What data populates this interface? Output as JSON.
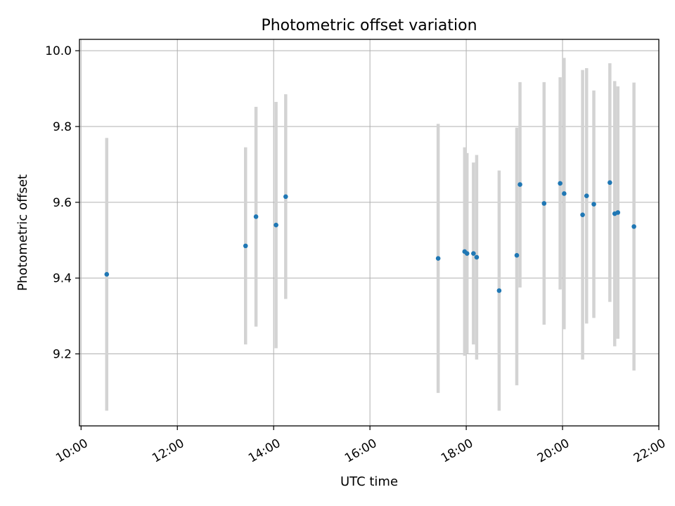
{
  "chart_data": {
    "type": "scatter",
    "title": "Photometric offset variation",
    "xlabel": "UTC time",
    "ylabel": "Photometric offset",
    "x_tick_labels": [
      "10:00",
      "12:00",
      "14:00",
      "16:00",
      "18:00",
      "20:00",
      "22:00"
    ],
    "y_tick_labels": [
      "9.2",
      "9.4",
      "9.6",
      "9.8",
      "10.0"
    ],
    "xlim": [
      "09:58",
      "22:00"
    ],
    "ylim": [
      9.01,
      10.03
    ],
    "grid": true,
    "point_color": "#1f77b4",
    "errorbar_color": "#d3d3d3",
    "points": [
      {
        "x": "10:32",
        "y": 9.41,
        "ymin": 9.05,
        "ymax": 9.77
      },
      {
        "x": "13:25",
        "y": 9.485,
        "ymin": 9.225,
        "ymax": 9.745
      },
      {
        "x": "13:38",
        "y": 9.562,
        "ymin": 9.272,
        "ymax": 9.852
      },
      {
        "x": "14:03",
        "y": 9.54,
        "ymin": 9.215,
        "ymax": 9.865
      },
      {
        "x": "14:15",
        "y": 9.615,
        "ymin": 9.345,
        "ymax": 9.885
      },
      {
        "x": "17:25",
        "y": 9.452,
        "ymin": 9.097,
        "ymax": 9.807
      },
      {
        "x": "17:58",
        "y": 9.47,
        "ymin": 9.195,
        "ymax": 9.745
      },
      {
        "x": "18:01",
        "y": 9.465,
        "ymin": 9.2,
        "ymax": 9.73
      },
      {
        "x": "18:09",
        "y": 9.465,
        "ymin": 9.225,
        "ymax": 9.705
      },
      {
        "x": "18:13",
        "y": 9.455,
        "ymin": 9.185,
        "ymax": 9.725
      },
      {
        "x": "18:41",
        "y": 9.367,
        "ymin": 9.05,
        "ymax": 9.684
      },
      {
        "x": "19:03",
        "y": 9.46,
        "ymin": 9.117,
        "ymax": 9.797
      },
      {
        "x": "19:07",
        "y": 9.647,
        "ymin": 9.375,
        "ymax": 9.917
      },
      {
        "x": "19:37",
        "y": 9.597,
        "ymin": 9.277,
        "ymax": 9.917
      },
      {
        "x": "19:57",
        "y": 9.65,
        "ymin": 9.37,
        "ymax": 9.93
      },
      {
        "x": "20:02",
        "y": 9.623,
        "ymin": 9.265,
        "ymax": 9.981
      },
      {
        "x": "20:25",
        "y": 9.567,
        "ymin": 9.185,
        "ymax": 9.949
      },
      {
        "x": "20:30",
        "y": 9.617,
        "ymin": 9.28,
        "ymax": 9.954
      },
      {
        "x": "20:39",
        "y": 9.595,
        "ymin": 9.295,
        "ymax": 9.895
      },
      {
        "x": "20:59",
        "y": 9.652,
        "ymin": 9.337,
        "ymax": 9.967
      },
      {
        "x": "21:05",
        "y": 9.57,
        "ymin": 9.22,
        "ymax": 9.92
      },
      {
        "x": "21:09",
        "y": 9.573,
        "ymin": 9.24,
        "ymax": 9.906
      },
      {
        "x": "21:29",
        "y": 9.536,
        "ymin": 9.156,
        "ymax": 9.916
      }
    ]
  }
}
